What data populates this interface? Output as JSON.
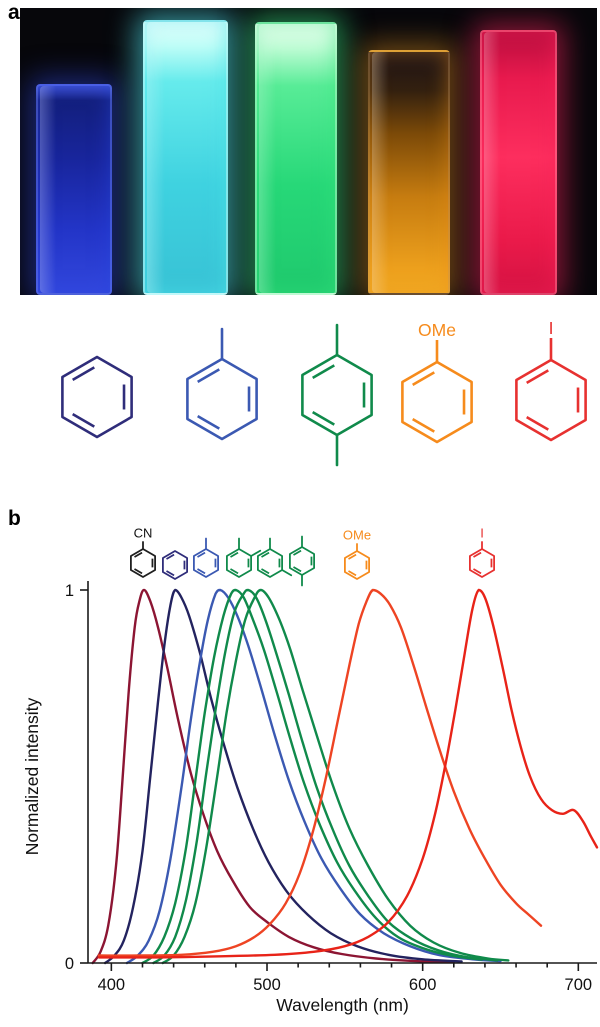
{
  "figure": {
    "panel_a_label": "a",
    "panel_b_label": "b"
  },
  "panel_a": {
    "photo_background": "#07070b",
    "cuvettes": [
      {
        "name": "benzene",
        "wall": "rgba(95,115,235,0.55)",
        "glow": "rgba(45,70,225,0.50)",
        "gradient": [
          "#3b4ecb 0%",
          "#131f7d 7%",
          "#18259c 35%",
          "#2335c8 70%",
          "#3247dd 100%"
        ]
      },
      {
        "name": "toluene",
        "wall": "rgba(170,245,248,0.65)",
        "glow": "rgba(80,230,238,0.60)",
        "gradient": [
          "#eefffd 0%",
          "#bdfdf7 9%",
          "#66ebec 22%",
          "#3fd2e0 60%",
          "#38c2d5 100%"
        ]
      },
      {
        "name": "p-xylene",
        "wall": "rgba(160,245,190,0.60)",
        "glow": "rgba(55,230,125,0.55)",
        "gradient": [
          "#f2fff5 0%",
          "#bdfcd4 9%",
          "#58ec97 23%",
          "#27d878 60%",
          "#1fc96d 100%"
        ]
      },
      {
        "name": "anisole",
        "wall": "rgba(200,150,80,0.45)",
        "glow": "rgba(235,150,30,0.45)",
        "gradient": [
          "#1d1216 0%",
          "#33200f 16%",
          "#7c4a08 34%",
          "#c67c10 60%",
          "#eda01d 90%",
          "#f1a922 100%"
        ]
      },
      {
        "name": "iodobenzene",
        "wall": "rgba(255,120,150,0.50)",
        "glow": "rgba(245,35,90,0.55)",
        "gradient": [
          "#b90e3e 0%",
          "#e81a4e 18%",
          "#fd2e5e 48%",
          "#ea1a4a 80%",
          "#d51343 100%"
        ]
      }
    ],
    "structures": [
      {
        "name": "benzene",
        "color": "#2f2d7a",
        "subs": [],
        "label": ""
      },
      {
        "name": "toluene",
        "color": "#3b59b2",
        "subs": [
          "top"
        ],
        "label": ""
      },
      {
        "name": "p-xylene",
        "color": "#108a4b",
        "subs": [
          "top",
          "bottom"
        ],
        "label": ""
      },
      {
        "name": "anisole",
        "color": "#f68b1c",
        "subs": [],
        "label": "OMe"
      },
      {
        "name": "iodobenzene",
        "color": "#e73130",
        "subs": [],
        "label": "I"
      }
    ]
  },
  "panel_b": {
    "structures": [
      {
        "name": "benzonitrile",
        "color": "#1f1f1f",
        "subs": [],
        "label": "CN",
        "label_color": "#111111"
      },
      {
        "name": "benzene",
        "color": "#2f2d7a",
        "subs": [],
        "label": ""
      },
      {
        "name": "toluene",
        "color": "#3b59b2",
        "subs": [
          "top"
        ],
        "label": ""
      },
      {
        "name": "o-xylene",
        "color": "#108a4b",
        "subs": [
          "top",
          "upper-right"
        ],
        "label": ""
      },
      {
        "name": "m-xylene",
        "color": "#108a4b",
        "subs": [
          "top",
          "lower-right"
        ],
        "label": ""
      },
      {
        "name": "p-xylene",
        "color": "#108a4b",
        "subs": [
          "top",
          "bottom"
        ],
        "label": ""
      },
      {
        "name": "anisole",
        "color": "#f68b1c",
        "subs": [],
        "label": "OMe"
      },
      {
        "name": "iodobenzene",
        "color": "#e73130",
        "subs": [],
        "label": "I"
      }
    ]
  },
  "chart_data": {
    "type": "line",
    "title": "",
    "xlabel": "Wavelength (nm)",
    "ylabel": "Normalized intensity",
    "xlim": [
      385,
      712
    ],
    "ylim": [
      0,
      1
    ],
    "x_ticks": [
      400,
      500,
      600,
      700
    ],
    "x_minor_tick_step": 20,
    "y_ticks": [
      0,
      1
    ],
    "grid": false,
    "series": [
      {
        "name": "benzonitrile-CN",
        "color": "#8c1533",
        "points": [
          [
            388,
            0
          ],
          [
            393,
            0.03
          ],
          [
            398,
            0.1
          ],
          [
            403,
            0.26
          ],
          [
            407,
            0.48
          ],
          [
            411,
            0.72
          ],
          [
            415,
            0.9
          ],
          [
            418,
            0.97
          ],
          [
            421,
            1.0
          ],
          [
            425,
            0.97
          ],
          [
            430,
            0.9
          ],
          [
            436,
            0.79
          ],
          [
            443,
            0.65
          ],
          [
            451,
            0.51
          ],
          [
            459,
            0.4
          ],
          [
            468,
            0.3
          ],
          [
            478,
            0.22
          ],
          [
            489,
            0.15
          ],
          [
            500,
            0.11
          ],
          [
            514,
            0.07
          ],
          [
            530,
            0.042
          ],
          [
            548,
            0.024
          ],
          [
            570,
            0.012
          ],
          [
            595,
            0.005
          ],
          [
            620,
            0.002
          ]
        ]
      },
      {
        "name": "benzene",
        "color": "#23235f",
        "points": [
          [
            396,
            0
          ],
          [
            402,
            0.02
          ],
          [
            408,
            0.06
          ],
          [
            414,
            0.15
          ],
          [
            420,
            0.3
          ],
          [
            425,
            0.5
          ],
          [
            430,
            0.7
          ],
          [
            434,
            0.85
          ],
          [
            438,
            0.96
          ],
          [
            441,
            1.0
          ],
          [
            445,
            0.98
          ],
          [
            450,
            0.93
          ],
          [
            457,
            0.83
          ],
          [
            464,
            0.71
          ],
          [
            472,
            0.59
          ],
          [
            481,
            0.47
          ],
          [
            491,
            0.36
          ],
          [
            501,
            0.27
          ],
          [
            513,
            0.19
          ],
          [
            526,
            0.13
          ],
          [
            541,
            0.08
          ],
          [
            558,
            0.045
          ],
          [
            578,
            0.022
          ],
          [
            600,
            0.01
          ],
          [
            625,
            0.004
          ]
        ]
      },
      {
        "name": "toluene",
        "color": "#3b59b2",
        "points": [
          [
            410,
            0
          ],
          [
            417,
            0.02
          ],
          [
            424,
            0.06
          ],
          [
            431,
            0.14
          ],
          [
            438,
            0.28
          ],
          [
            445,
            0.47
          ],
          [
            451,
            0.65
          ],
          [
            457,
            0.81
          ],
          [
            462,
            0.92
          ],
          [
            467,
            0.99
          ],
          [
            470,
            1.0
          ],
          [
            475,
            0.98
          ],
          [
            481,
            0.93
          ],
          [
            488,
            0.85
          ],
          [
            496,
            0.74
          ],
          [
            505,
            0.61
          ],
          [
            514,
            0.49
          ],
          [
            524,
            0.38
          ],
          [
            535,
            0.28
          ],
          [
            547,
            0.2
          ],
          [
            560,
            0.13
          ],
          [
            575,
            0.08
          ],
          [
            592,
            0.045
          ],
          [
            610,
            0.022
          ],
          [
            632,
            0.01
          ],
          [
            650,
            0.005
          ]
        ]
      },
      {
        "name": "o-xylene",
        "color": "#108a4b",
        "points": [
          [
            420,
            0
          ],
          [
            427,
            0.02
          ],
          [
            434,
            0.07
          ],
          [
            441,
            0.16
          ],
          [
            448,
            0.31
          ],
          [
            454,
            0.49
          ],
          [
            460,
            0.67
          ],
          [
            466,
            0.82
          ],
          [
            472,
            0.93
          ],
          [
            477,
            0.99
          ],
          [
            480,
            1.0
          ],
          [
            485,
            0.98
          ],
          [
            491,
            0.92
          ],
          [
            498,
            0.84
          ],
          [
            506,
            0.73
          ],
          [
            515,
            0.6
          ],
          [
            524,
            0.48
          ],
          [
            534,
            0.37
          ],
          [
            545,
            0.27
          ],
          [
            557,
            0.19
          ],
          [
            570,
            0.12
          ],
          [
            584,
            0.07
          ],
          [
            600,
            0.04
          ],
          [
            618,
            0.02
          ],
          [
            638,
            0.009
          ]
        ]
      },
      {
        "name": "m-xylene",
        "color": "#108a4b",
        "points": [
          [
            427,
            0
          ],
          [
            434,
            0.02
          ],
          [
            441,
            0.07
          ],
          [
            448,
            0.17
          ],
          [
            455,
            0.33
          ],
          [
            461,
            0.51
          ],
          [
            467,
            0.68
          ],
          [
            473,
            0.83
          ],
          [
            479,
            0.94
          ],
          [
            485,
            0.99
          ],
          [
            488,
            1.0
          ],
          [
            493,
            0.98
          ],
          [
            499,
            0.92
          ],
          [
            506,
            0.83
          ],
          [
            514,
            0.72
          ],
          [
            523,
            0.59
          ],
          [
            532,
            0.47
          ],
          [
            542,
            0.36
          ],
          [
            553,
            0.26
          ],
          [
            565,
            0.18
          ],
          [
            578,
            0.11
          ],
          [
            593,
            0.065
          ],
          [
            610,
            0.034
          ],
          [
            628,
            0.016
          ],
          [
            648,
            0.007
          ]
        ]
      },
      {
        "name": "p-xylene",
        "color": "#108a4b",
        "points": [
          [
            433,
            0
          ],
          [
            440,
            0.02
          ],
          [
            447,
            0.07
          ],
          [
            454,
            0.16
          ],
          [
            461,
            0.31
          ],
          [
            468,
            0.5
          ],
          [
            474,
            0.67
          ],
          [
            480,
            0.81
          ],
          [
            486,
            0.92
          ],
          [
            492,
            0.98
          ],
          [
            496,
            1.0
          ],
          [
            501,
            0.98
          ],
          [
            508,
            0.92
          ],
          [
            515,
            0.84
          ],
          [
            523,
            0.73
          ],
          [
            532,
            0.61
          ],
          [
            542,
            0.48
          ],
          [
            553,
            0.36
          ],
          [
            565,
            0.26
          ],
          [
            578,
            0.17
          ],
          [
            592,
            0.1
          ],
          [
            607,
            0.055
          ],
          [
            624,
            0.027
          ],
          [
            642,
            0.012
          ],
          [
            655,
            0.007
          ]
        ]
      },
      {
        "name": "anisole-OMe",
        "color": "#ee4423",
        "points": [
          [
            392,
            0.02
          ],
          [
            420,
            0.02
          ],
          [
            445,
            0.022
          ],
          [
            465,
            0.03
          ],
          [
            480,
            0.045
          ],
          [
            492,
            0.07
          ],
          [
            502,
            0.105
          ],
          [
            512,
            0.16
          ],
          [
            521,
            0.24
          ],
          [
            530,
            0.36
          ],
          [
            538,
            0.5
          ],
          [
            546,
            0.66
          ],
          [
            553,
            0.8
          ],
          [
            559,
            0.91
          ],
          [
            564,
            0.97
          ],
          [
            568,
            1.0
          ],
          [
            573,
            0.99
          ],
          [
            579,
            0.96
          ],
          [
            586,
            0.9
          ],
          [
            594,
            0.8
          ],
          [
            602,
            0.69
          ],
          [
            611,
            0.57
          ],
          [
            620,
            0.46
          ],
          [
            630,
            0.36
          ],
          [
            640,
            0.28
          ],
          [
            650,
            0.21
          ],
          [
            660,
            0.16
          ],
          [
            668,
            0.13
          ],
          [
            676,
            0.1
          ]
        ]
      },
      {
        "name": "iodobenzene-I",
        "color": "#e82318",
        "points": [
          [
            392,
            0.015
          ],
          [
            430,
            0.015
          ],
          [
            470,
            0.018
          ],
          [
            505,
            0.022
          ],
          [
            530,
            0.03
          ],
          [
            550,
            0.045
          ],
          [
            565,
            0.07
          ],
          [
            578,
            0.11
          ],
          [
            590,
            0.18
          ],
          [
            600,
            0.28
          ],
          [
            608,
            0.4
          ],
          [
            615,
            0.54
          ],
          [
            621,
            0.68
          ],
          [
            627,
            0.83
          ],
          [
            632,
            0.95
          ],
          [
            636,
            1.0
          ],
          [
            640,
            0.98
          ],
          [
            645,
            0.91
          ],
          [
            651,
            0.8
          ],
          [
            657,
            0.68
          ],
          [
            663,
            0.58
          ],
          [
            669,
            0.5
          ],
          [
            676,
            0.44
          ],
          [
            683,
            0.41
          ],
          [
            690,
            0.4
          ],
          [
            697,
            0.41
          ],
          [
            703,
            0.38
          ],
          [
            708,
            0.34
          ],
          [
            712,
            0.31
          ]
        ]
      }
    ]
  }
}
